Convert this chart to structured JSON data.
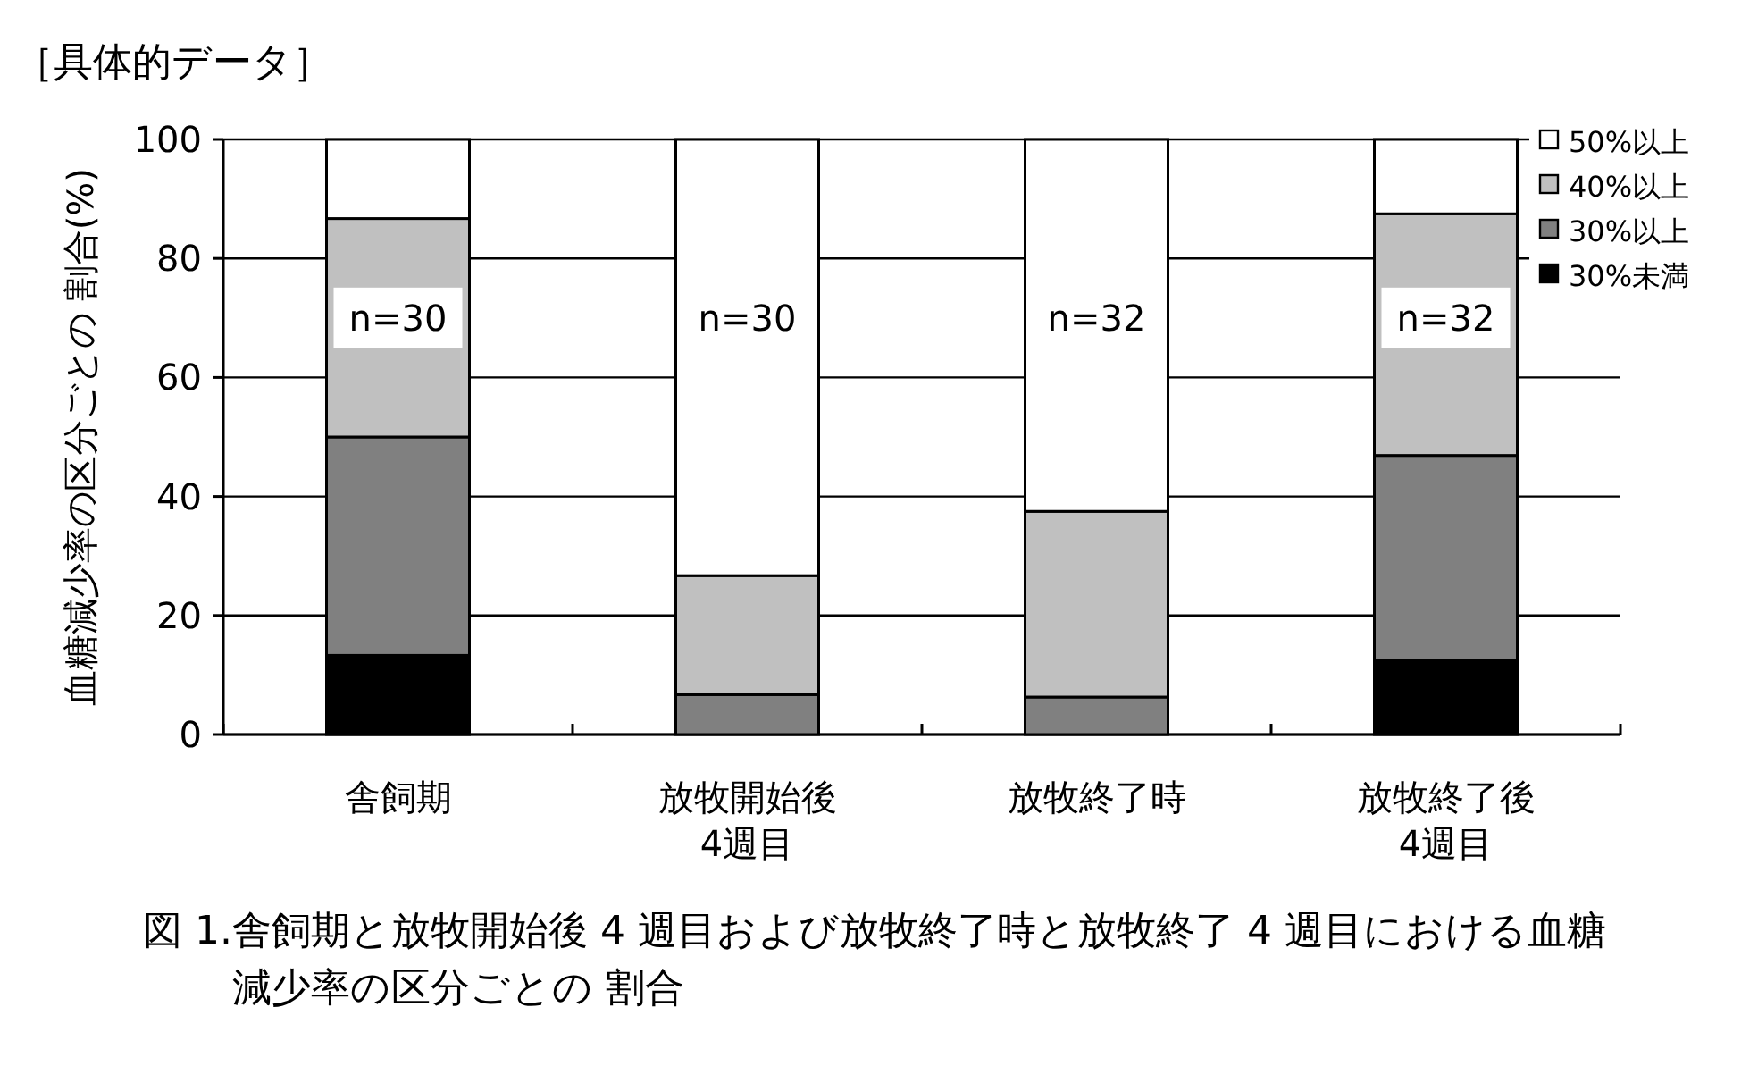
{
  "chart_data": {
    "type": "bar",
    "stacked": true,
    "title": "［具体的データ］",
    "ylabel": "血糖減少率の区分ごとの 割合(%)",
    "categories": [
      "舎飼期",
      "放牧開始後\n4週目",
      "放牧終了時",
      "放牧終了後\n4週目"
    ],
    "series": [
      {
        "name": "30%未満",
        "color": "#000000",
        "values": [
          13.3,
          0,
          0,
          12.5
        ]
      },
      {
        "name": "30%以上",
        "color": "#808080",
        "values": [
          36.7,
          6.7,
          6.3,
          34.4
        ]
      },
      {
        "name": "40%以上",
        "color": "#c0c0c0",
        "values": [
          36.7,
          20.0,
          31.2,
          40.6
        ]
      },
      {
        "name": "50%以上",
        "color": "#ffffff",
        "values": [
          13.3,
          73.3,
          62.5,
          12.5
        ]
      }
    ],
    "ylim": [
      0,
      100
    ],
    "yticks": [
      0,
      20,
      40,
      60,
      80,
      100
    ],
    "grid": "y",
    "legend": "top right",
    "annotations": [
      "n=30",
      "n=30",
      "n=32",
      "n=32",
      "図 1.舎飼期と放牧開始後 4 週目および放牧終了時と放牧終了 4 週目における血糖減少率の区分ごとの 割合"
    ]
  }
}
